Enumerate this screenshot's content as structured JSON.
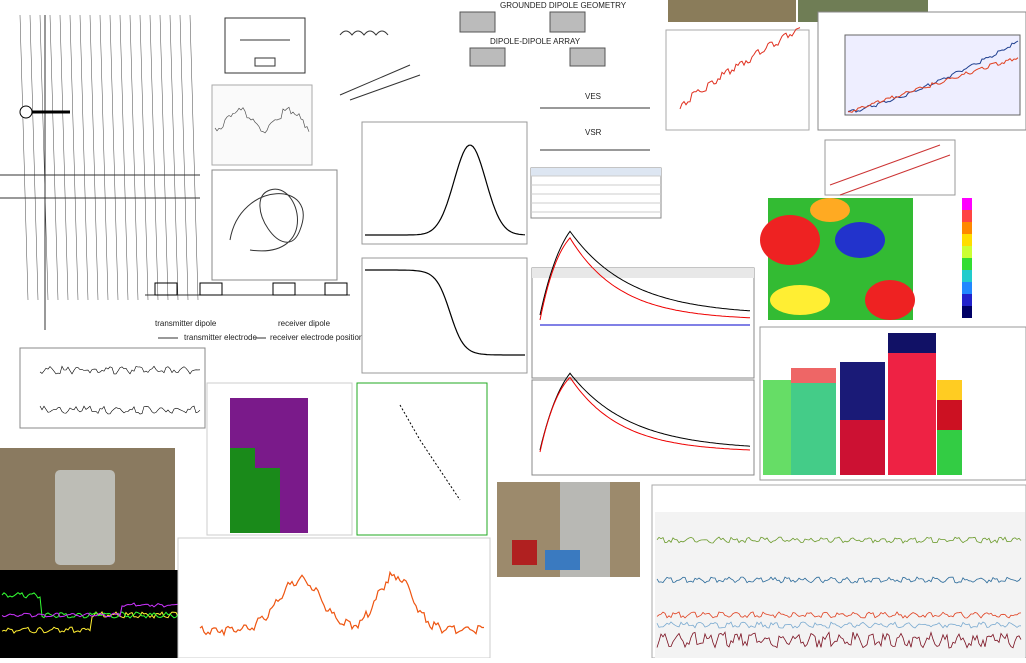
{
  "labels": {
    "grounded_geometry": "GROUNDED DIPOLE GEOMETRY",
    "dipole_array": "DIPOLE-DIPOLE ARRAY",
    "ves": "VES",
    "vsr": "VSR",
    "transmitter_dipole": "transmitter dipole",
    "receiver_dipole": "receiver dipole",
    "transmitter_electrode": "transmitter electrode",
    "receiver_position": "receiver electrode position"
  }
}
